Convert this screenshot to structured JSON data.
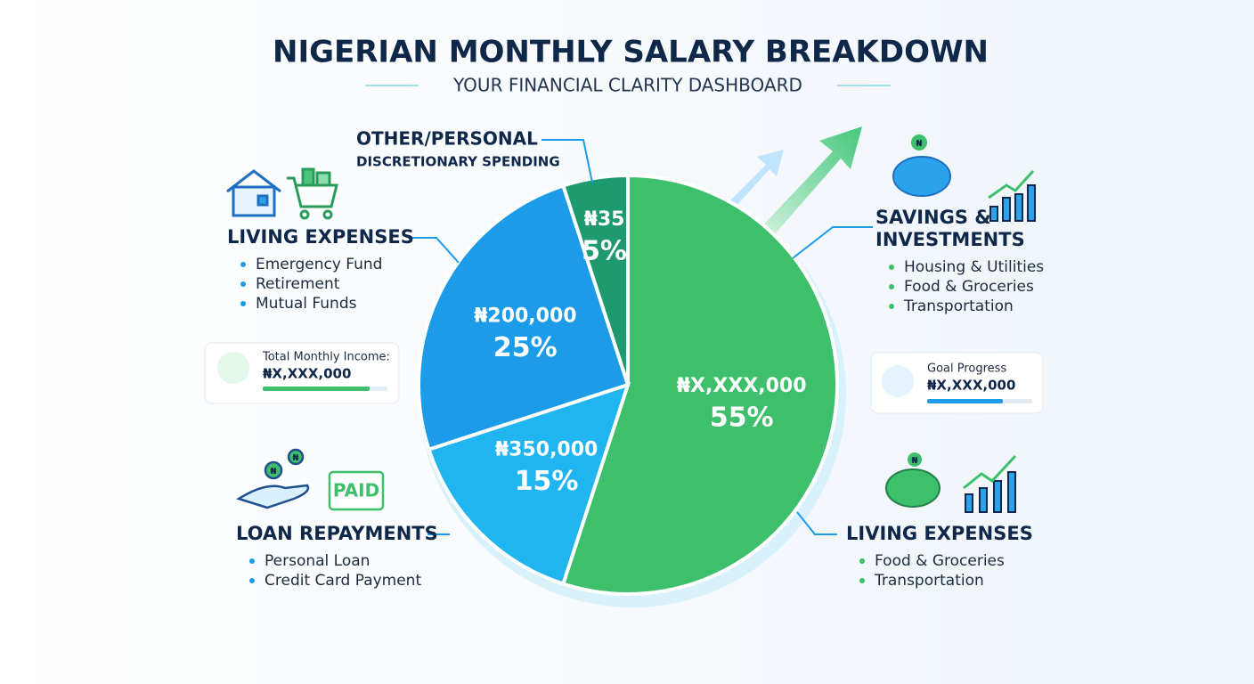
{
  "chart_data": {
    "type": "pie",
    "title": "NIGERIAN MONTHLY SALARY BREAKDOWN",
    "subtitle": "YOUR FINANCIAL CLARITY DASHBOARD",
    "categories": [
      null,
      null,
      null,
      null
    ],
    "values": [
      55,
      15,
      25,
      5
    ],
    "value_labels": [
      "55%",
      "15%",
      "25%",
      "5%"
    ],
    "amounts": [
      "₦X,XXX,000",
      "₦350,000",
      "₦200,000",
      "₦35"
    ],
    "colors": [
      "#3dbf6b",
      "#20b4f0",
      "#1b9be8",
      "#1e9a6e"
    ]
  },
  "icon_symbol": "₦",
  "callouts": {
    "other": {
      "title": [
        "OTHER/PERSONAL",
        "DISCRETIONARY SPENDING"
      ],
      "items": []
    },
    "living_left": {
      "title": [
        "LIVING EXPENSES"
      ],
      "items": [
        "Emergency Fund",
        "Retirement",
        "Mutual Funds"
      ]
    },
    "loan": {
      "title": [
        "LOAN REPAYMENTS"
      ],
      "items": [
        "Personal Loan",
        "Credit Card Payment"
      ],
      "badge": "PAID"
    },
    "savings": {
      "title": [
        "SAVINGS &",
        "INVESTMENTS"
      ],
      "items": [
        "Housing & Utilities",
        "Food & Groceries",
        "Transportation"
      ]
    },
    "living_right": {
      "title": [
        "LIVING EXPENSES"
      ],
      "items": [
        "Food & Groceries",
        "Transportation"
      ]
    }
  },
  "cards": {
    "income": {
      "label": "Total Monthly Income:",
      "amount": "₦X,XXX,000"
    },
    "goal": {
      "label": "Goal Progress",
      "amount": "₦X,XXX,000"
    }
  }
}
